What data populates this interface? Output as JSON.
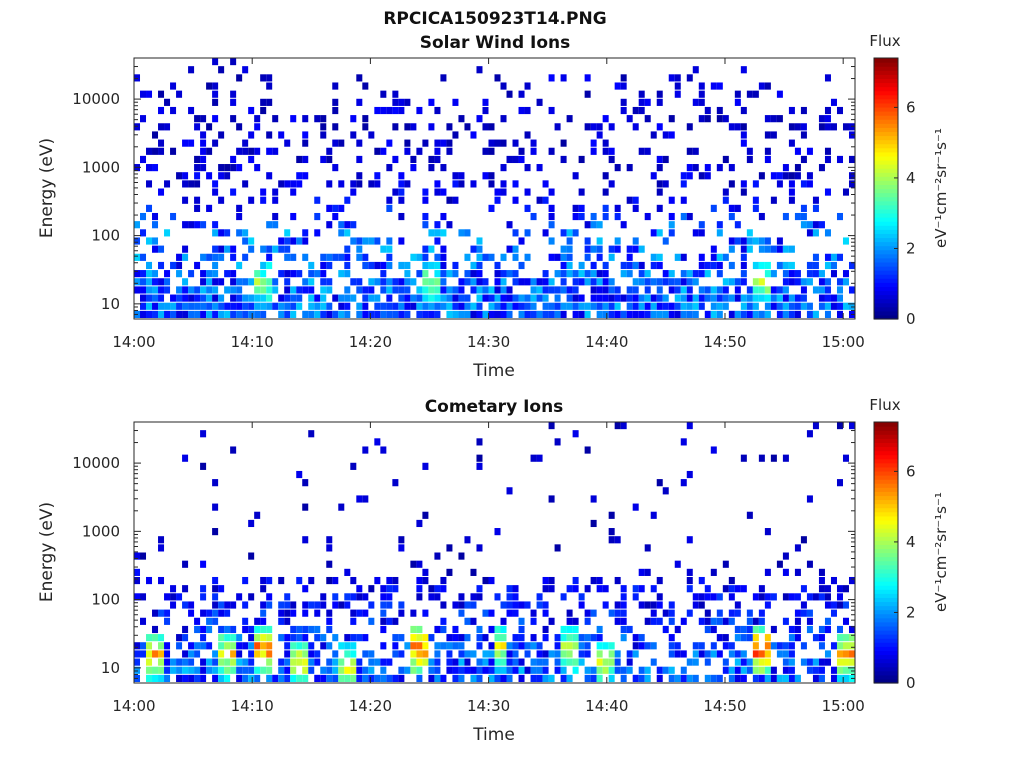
{
  "figure": {
    "suptitle": "RPCICA150923T14.PNG"
  },
  "chart_data": [
    {
      "type": "heatmap",
      "title": "Solar Wind Ions",
      "xlabel": "Time",
      "ylabel": "Energy (eV)",
      "y_scale": "log",
      "ylim": [
        6,
        40000
      ],
      "xlim": [
        "14:00",
        "15:01"
      ],
      "x_ticks": [
        "14:00",
        "14:10",
        "14:20",
        "14:30",
        "14:40",
        "14:50",
        "15:00"
      ],
      "y_ticks": [
        "10",
        "100",
        "1000",
        "10000"
      ],
      "colorbar": {
        "label": "Flux",
        "units": "eV⁻¹cm⁻²sr⁻¹s⁻¹",
        "range": [
          0,
          7.4
        ],
        "ticks": [
          "0",
          "2",
          "4",
          "6"
        ],
        "colormap": "jet"
      },
      "density_profile": [
        {
          "energy_eV": 30000,
          "flux": 0.6,
          "occupancy": 0.05
        },
        {
          "energy_eV": 10000,
          "flux": 0.6,
          "occupancy": 0.22
        },
        {
          "energy_eV": 1000,
          "flux": 0.6,
          "occupancy": 0.25
        },
        {
          "energy_eV": 300,
          "flux": 0.8,
          "occupancy": 0.22
        },
        {
          "energy_eV": 100,
          "flux": 1.6,
          "occupancy": 0.28
        },
        {
          "energy_eV": 30,
          "flux": 1.5,
          "occupancy": 0.55
        },
        {
          "energy_eV": 10,
          "flux": 1.5,
          "occupancy": 0.9
        }
      ],
      "hot_spots": [
        {
          "time": "14:11",
          "energy_eV": 20,
          "flux": 4.5
        },
        {
          "time": "14:25",
          "energy_eV": 20,
          "flux": 4.3
        },
        {
          "time": "14:53",
          "energy_eV": 20,
          "flux": 4.5
        }
      ]
    },
    {
      "type": "heatmap",
      "title": "Cometary Ions",
      "xlabel": "Time",
      "ylabel": "Energy (eV)",
      "y_scale": "log",
      "ylim": [
        6,
        40000
      ],
      "xlim": [
        "14:00",
        "15:01"
      ],
      "x_ticks": [
        "14:00",
        "14:10",
        "14:20",
        "14:30",
        "14:40",
        "14:50",
        "15:00"
      ],
      "y_ticks": [
        "10",
        "100",
        "1000",
        "10000"
      ],
      "colorbar": {
        "label": "Flux",
        "units": "eV⁻¹cm⁻²sr⁻¹s⁻¹",
        "range": [
          0,
          7.4
        ],
        "ticks": [
          "0",
          "2",
          "4",
          "6"
        ],
        "colormap": "jet"
      },
      "density_profile": [
        {
          "energy_eV": 10000,
          "flux": 0.5,
          "occupancy": 0.04
        },
        {
          "energy_eV": 1000,
          "flux": 0.5,
          "occupancy": 0.04
        },
        {
          "energy_eV": 300,
          "flux": 0.6,
          "occupancy": 0.08
        },
        {
          "energy_eV": 100,
          "flux": 0.9,
          "occupancy": 0.45
        },
        {
          "energy_eV": 30,
          "flux": 1.2,
          "occupancy": 0.45
        },
        {
          "energy_eV": 10,
          "flux": 1.5,
          "occupancy": 0.7
        }
      ],
      "hot_spots": [
        {
          "time": "14:02",
          "energy_eV": 15,
          "flux": 6.0
        },
        {
          "time": "14:08",
          "energy_eV": 15,
          "flux": 5.5
        },
        {
          "time": "14:11",
          "energy_eV": 18,
          "flux": 6.5
        },
        {
          "time": "14:14",
          "energy_eV": 12,
          "flux": 5.5
        },
        {
          "time": "14:18",
          "energy_eV": 10,
          "flux": 5.0
        },
        {
          "time": "14:24",
          "energy_eV": 18,
          "flux": 6.5
        },
        {
          "time": "14:31",
          "energy_eV": 20,
          "flux": 5.0
        },
        {
          "time": "14:37",
          "energy_eV": 18,
          "flux": 5.0
        },
        {
          "time": "14:40",
          "energy_eV": 12,
          "flux": 5.0
        },
        {
          "time": "14:53",
          "energy_eV": 18,
          "flux": 7.0
        },
        {
          "time": "15:00",
          "energy_eV": 15,
          "flux": 6.0
        }
      ]
    }
  ]
}
